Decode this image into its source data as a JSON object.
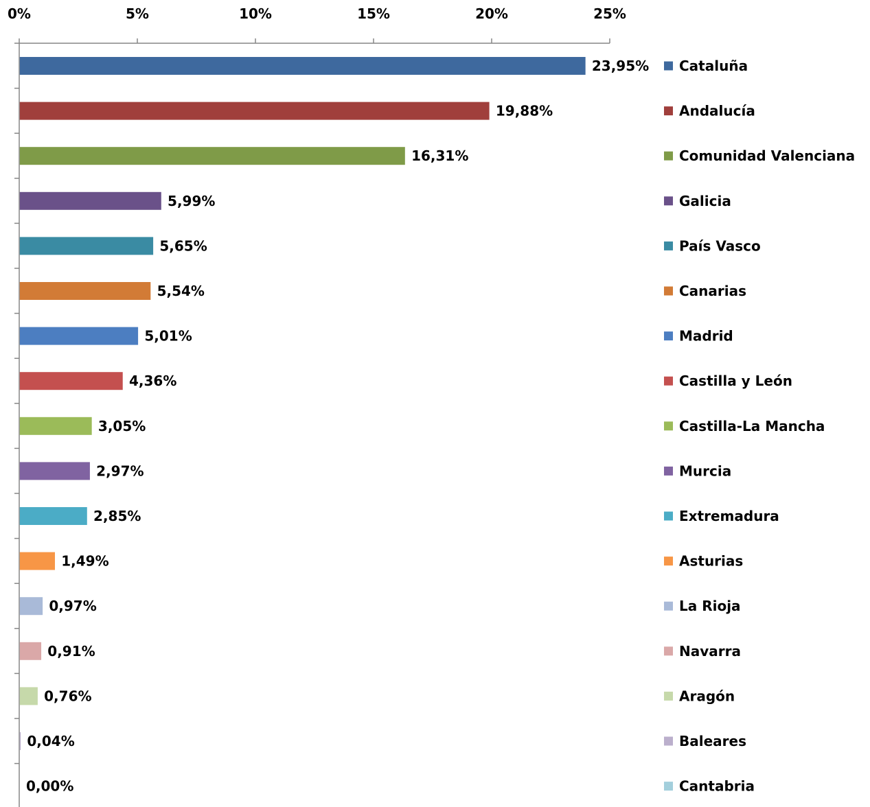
{
  "chart_data": {
    "type": "bar",
    "orientation": "horizontal",
    "xlim": [
      0,
      25
    ],
    "x_ticks": [
      "0%",
      "5%",
      "10%",
      "15%",
      "20%",
      "25%"
    ],
    "x_tick_values": [
      0,
      5,
      10,
      15,
      20,
      25
    ],
    "x_axis_position": "top",
    "legend_position": "right",
    "grid": false,
    "categories": [
      "Cataluña",
      "Andalucía",
      "Comunidad Valenciana",
      "Galicia",
      "País Vasco",
      "Canarias",
      "Madrid",
      "Castilla y León",
      "Castilla-La Mancha",
      "Murcia",
      "Extremadura",
      "Asturias",
      "La Rioja",
      "Navarra",
      "Aragón",
      "Baleares",
      "Cantabria"
    ],
    "values": [
      23.95,
      19.88,
      16.31,
      5.99,
      5.65,
      5.54,
      5.01,
      4.36,
      3.05,
      2.97,
      2.85,
      1.49,
      0.97,
      0.91,
      0.76,
      0.04,
      0.0
    ],
    "value_labels": [
      "23,95%",
      "19,88%",
      "16,31%",
      "5,99%",
      "5,65%",
      "5,54%",
      "5,01%",
      "4,36%",
      "3,05%",
      "2,97%",
      "2,85%",
      "1,49%",
      "0,97%",
      "0,91%",
      "0,76%",
      "0,04%",
      "0,00%"
    ],
    "colors": [
      "#3E699E",
      "#A03F3C",
      "#7F9B48",
      "#6A5189",
      "#3A8BA3",
      "#D27B36",
      "#4C7EC1",
      "#C4504F",
      "#9BBB59",
      "#8063A1",
      "#4BACC6",
      "#F79646",
      "#A9BAD8",
      "#DAA8A8",
      "#C6D9AA",
      "#BBAFCC",
      "#A3CFDC"
    ]
  }
}
